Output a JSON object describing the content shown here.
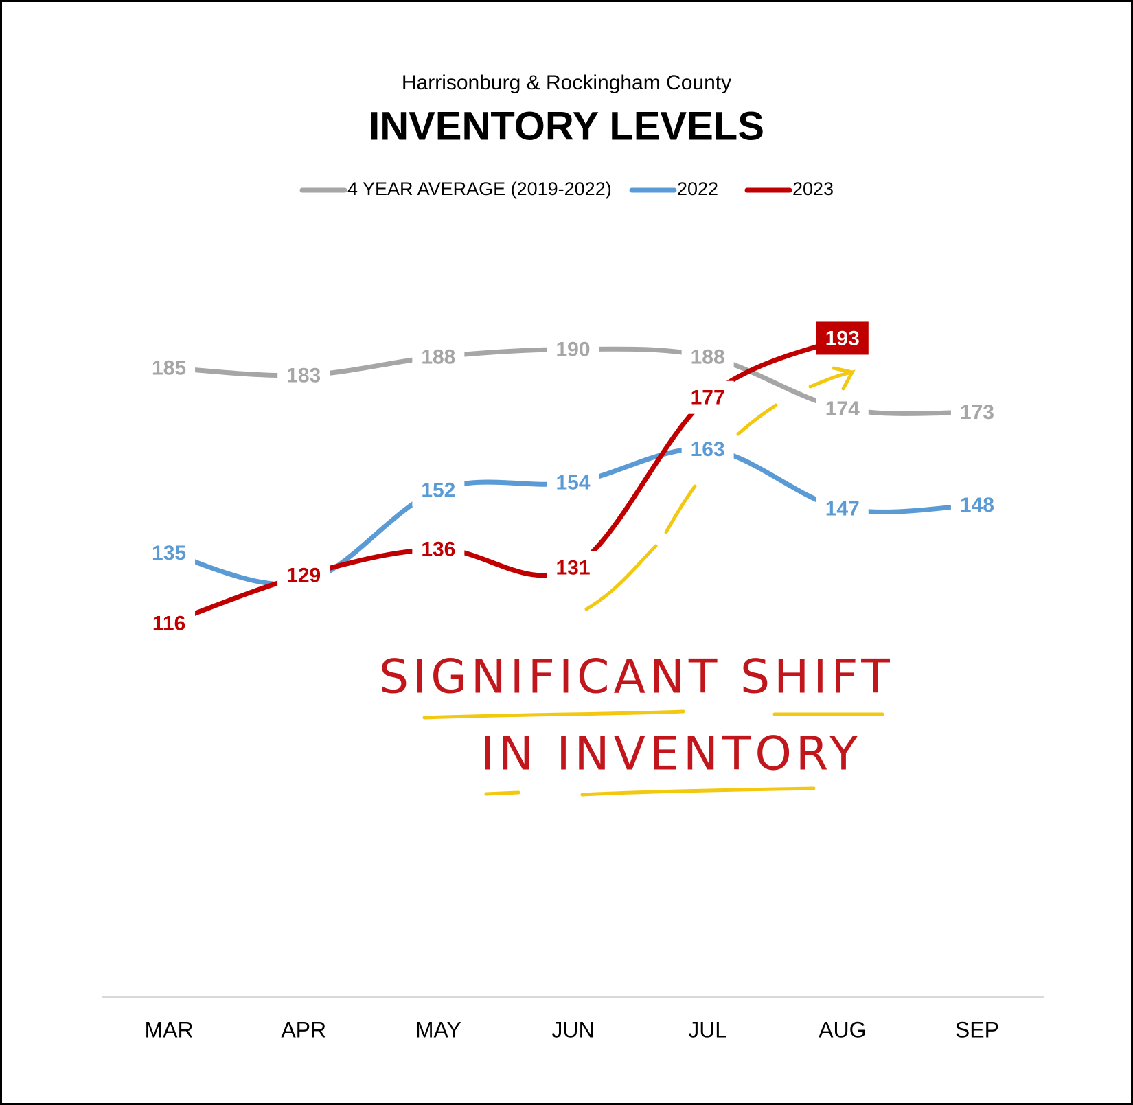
{
  "chart_data": {
    "type": "line",
    "subtitle": "Harrisonburg & Rockingham County",
    "title": "INVENTORY LEVELS",
    "categories": [
      "MAR",
      "APR",
      "MAY",
      "JUN",
      "JUL",
      "AUG",
      "SEP"
    ],
    "series": [
      {
        "name": "4 YEAR AVERAGE (2019-2022)",
        "color": "#a6a6a6",
        "values": [
          185,
          183,
          188,
          190,
          188,
          174,
          173
        ]
      },
      {
        "name": "2022",
        "color": "#5b9bd5",
        "values": [
          135,
          127,
          152,
          154,
          163,
          147,
          148
        ]
      },
      {
        "name": "2023",
        "color": "#c00000",
        "values": [
          116,
          129,
          136,
          131,
          177,
          193,
          null
        ]
      }
    ],
    "ylim": [
      15,
      230
    ],
    "legend": "top",
    "annotations": [
      "SIGNIFICANT SHIFT",
      "IN INVENTORY"
    ]
  }
}
